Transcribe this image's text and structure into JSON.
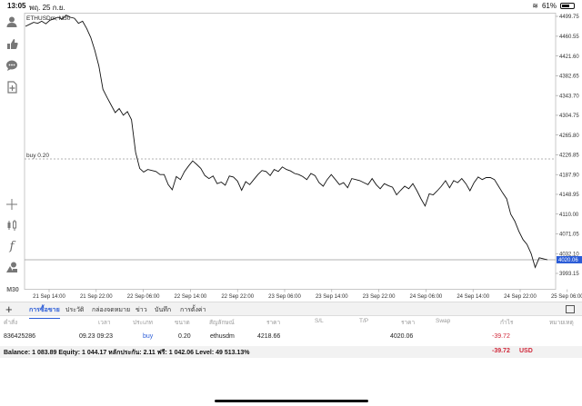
{
  "status": {
    "time": "13:05",
    "date": "พฤ. 25 ก.ย.",
    "battery": "61%"
  },
  "toolbar": {
    "timeframe": "M30",
    "icons": [
      "person-icon",
      "thumb-icon",
      "chat-icon",
      "add-note-icon",
      "crosshair-icon",
      "candles-icon",
      "function-icon",
      "objects-icon"
    ]
  },
  "chart": {
    "symbol_label": "ETHUSDm, M30",
    "order_line_label": "buy 0.20",
    "current_price": "4020.06"
  },
  "chart_data": {
    "type": "line",
    "y_ticks": [
      "4499.75",
      "4460.55",
      "4421.60",
      "4382.65",
      "4343.70",
      "4304.75",
      "4265.80",
      "4226.85",
      "4187.90",
      "4148.95",
      "4110.00",
      "4071.05",
      "4032.10",
      "3993.15"
    ],
    "x_ticks": [
      "21 Sep 14:00",
      "21 Sep 22:00",
      "22 Sep 06:00",
      "22 Sep 14:00",
      "22 Sep 22:00",
      "23 Sep 06:00",
      "23 Sep 14:00",
      "23 Sep 22:00",
      "24 Sep 06:00",
      "24 Sep 14:00",
      "24 Sep 22:00",
      "25 Sep 06:00"
    ],
    "ylim": [
      3975,
      4515
    ],
    "order_level": 4218.66,
    "current_level": 4020.06,
    "values": [
      4480,
      4484,
      4488,
      4486,
      4490,
      4485,
      4492,
      4495,
      4498,
      4494,
      4502,
      4498,
      4496,
      4486,
      4490,
      4476,
      4458,
      4433,
      4402,
      4356,
      4340,
      4325,
      4310,
      4318,
      4305,
      4312,
      4296,
      4232,
      4200,
      4193,
      4198,
      4196,
      4194,
      4188,
      4188,
      4168,
      4158,
      4184,
      4178,
      4194,
      4205,
      4215,
      4208,
      4200,
      4186,
      4180,
      4185,
      4170,
      4173,
      4167,
      4185,
      4183,
      4175,
      4157,
      4174,
      4168,
      4178,
      4188,
      4196,
      4194,
      4186,
      4198,
      4194,
      4203,
      4198,
      4195,
      4190,
      4188,
      4184,
      4178,
      4190,
      4186,
      4172,
      4165,
      4178,
      4188,
      4178,
      4168,
      4172,
      4162,
      4180,
      4178,
      4176,
      4172,
      4168,
      4180,
      4168,
      4160,
      4170,
      4166,
      4163,
      4148,
      4157,
      4165,
      4160,
      4170,
      4156,
      4140,
      4126,
      4150,
      4148,
      4156,
      4165,
      4176,
      4162,
      4176,
      4172,
      4180,
      4170,
      4156,
      4172,
      4183,
      4178,
      4182,
      4182,
      4178,
      4165,
      4152,
      4140,
      4110,
      4096,
      4076,
      4060,
      4050,
      4032,
      4005,
      4024,
      4022,
      4020
    ]
  },
  "tabs": [
    {
      "label": "การซื้อขาย",
      "active": true
    },
    {
      "label": "ประวัติ"
    },
    {
      "label": "กล่องจดหมาย"
    },
    {
      "label": "ข่าว"
    },
    {
      "label": "บันทึก"
    },
    {
      "label": "การตั้งค่า"
    }
  ],
  "table": {
    "headers": {
      "order": "คำสั่ง",
      "time": "เวลา",
      "type": "ประเภท",
      "volume": "ขนาด",
      "symbol": "สัญลักษณ์",
      "price": "ราคา",
      "sl": "S/L",
      "tp": "T/P",
      "cur_price": "ราคา",
      "swap": "Swap",
      "profit": "กำไร",
      "comment": "หมายเหตุ"
    },
    "row": {
      "order": "836425286",
      "time": "09.23 09:23",
      "type": "buy",
      "volume": "0.20",
      "symbol": "ethusdm",
      "price": "4218.66",
      "cur_price": "4020.06",
      "profit": "-39.72"
    }
  },
  "balance": {
    "text": "Balance: 1 083.89 Equity: 1 044.17 หลักประกัน: 2.11 ฟรี: 1 042.06 Level: 49 513.13%",
    "profit": "-39.72",
    "currency": "USD"
  },
  "colors": {
    "accent": "#2a5bd7",
    "loss": "#d0283a",
    "line": "#111111"
  }
}
